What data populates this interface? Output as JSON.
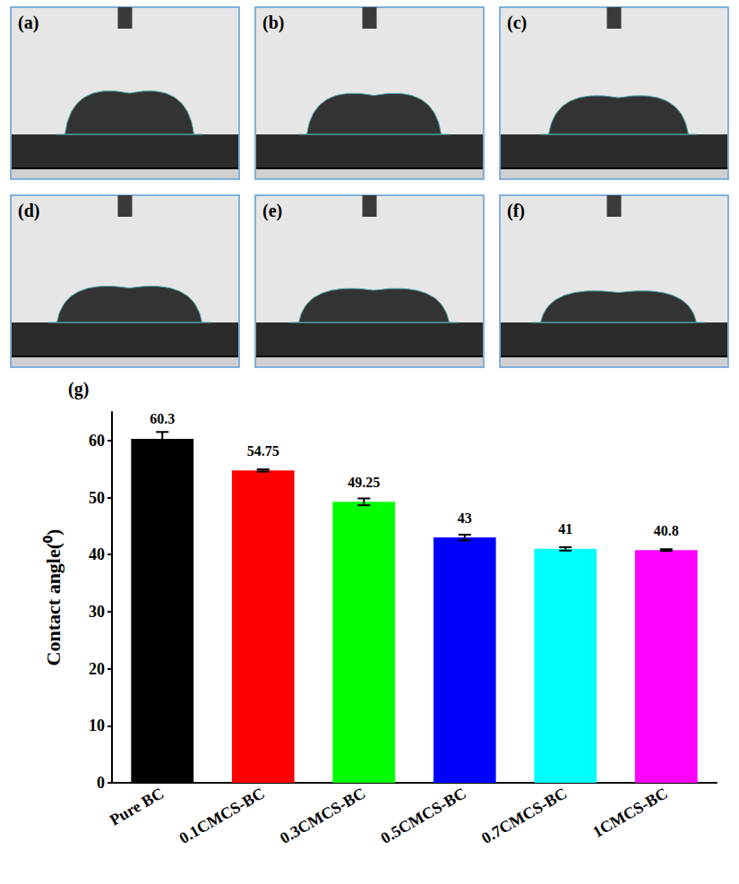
{
  "photo_panels": {
    "labels": [
      "(a)",
      "(b)",
      "(c)",
      "(d)",
      "(e)",
      "(f)"
    ]
  },
  "chart_data": {
    "type": "bar",
    "panel_label": "(g)",
    "y_label": "Contact angle(⁰)",
    "categories": [
      "Pure BC",
      "0.1CMCS-BC",
      "0.3CMCS-BC",
      "0.5CMCS-BC",
      "0.7CMCS-BC",
      "1CMCS-BC"
    ],
    "values": [
      60.3,
      54.75,
      49.25,
      43,
      41,
      40.8
    ],
    "errors": [
      1.2,
      0.2,
      0.6,
      0.5,
      0.3,
      0.15
    ],
    "colors": [
      "#000000",
      "#ff0000",
      "#00ff00",
      "#0000ff",
      "#00ffff",
      "#ff00ff"
    ],
    "ylim": [
      0,
      65
    ],
    "yticks": [
      0,
      10,
      20,
      30,
      40,
      50,
      60
    ],
    "grid": false,
    "data_labels": true
  }
}
